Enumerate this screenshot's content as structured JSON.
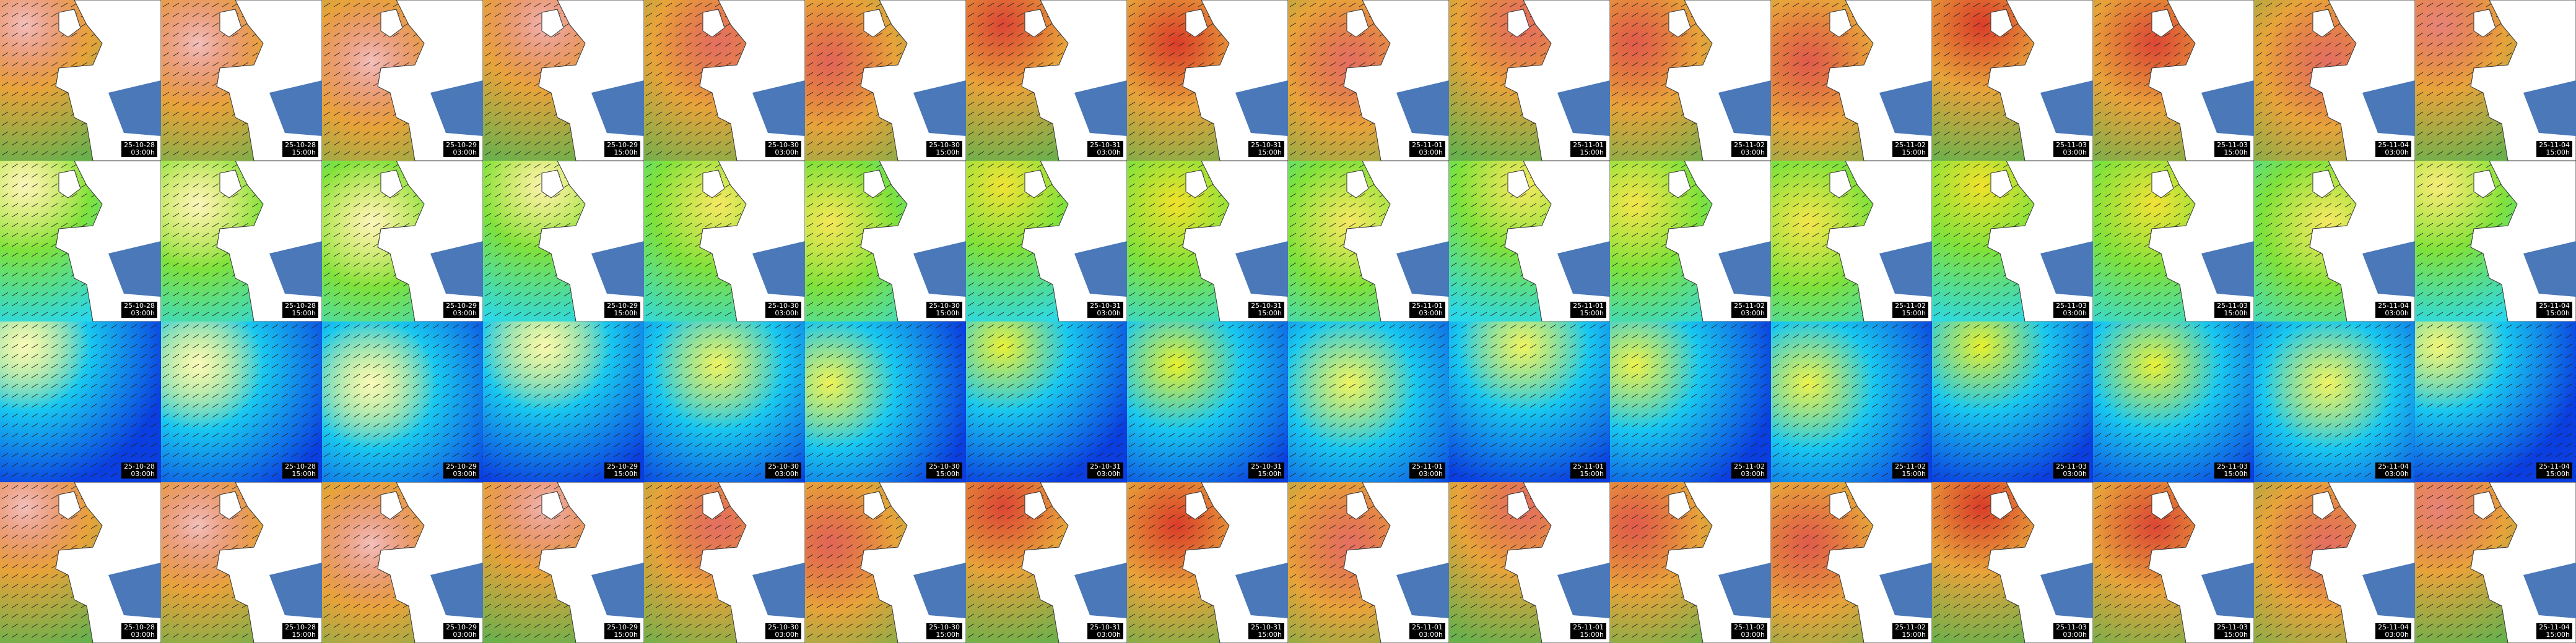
{
  "columns": [
    {
      "date": "25-10-28",
      "time": "03:00h"
    },
    {
      "date": "25-10-28",
      "time": "15:00h"
    },
    {
      "date": "25-10-29",
      "time": "03:00h"
    },
    {
      "date": "25-10-29",
      "time": "15:00h"
    },
    {
      "date": "25-10-30",
      "time": "03:00h"
    },
    {
      "date": "25-10-30",
      "time": "15:00h"
    },
    {
      "date": "25-10-31",
      "time": "03:00h"
    },
    {
      "date": "25-10-31",
      "time": "15:00h"
    },
    {
      "date": "25-11-01",
      "time": "03:00h"
    },
    {
      "date": "25-11-01",
      "time": "15:00h"
    },
    {
      "date": "25-11-02",
      "time": "03:00h"
    },
    {
      "date": "25-11-02",
      "time": "15:00h"
    },
    {
      "date": "25-11-03",
      "time": "03:00h"
    },
    {
      "date": "25-11-03",
      "time": "15:00h"
    },
    {
      "date": "25-11-04",
      "time": "03:00h"
    },
    {
      "date": "25-11-04",
      "time": "15:00h"
    }
  ]
}
